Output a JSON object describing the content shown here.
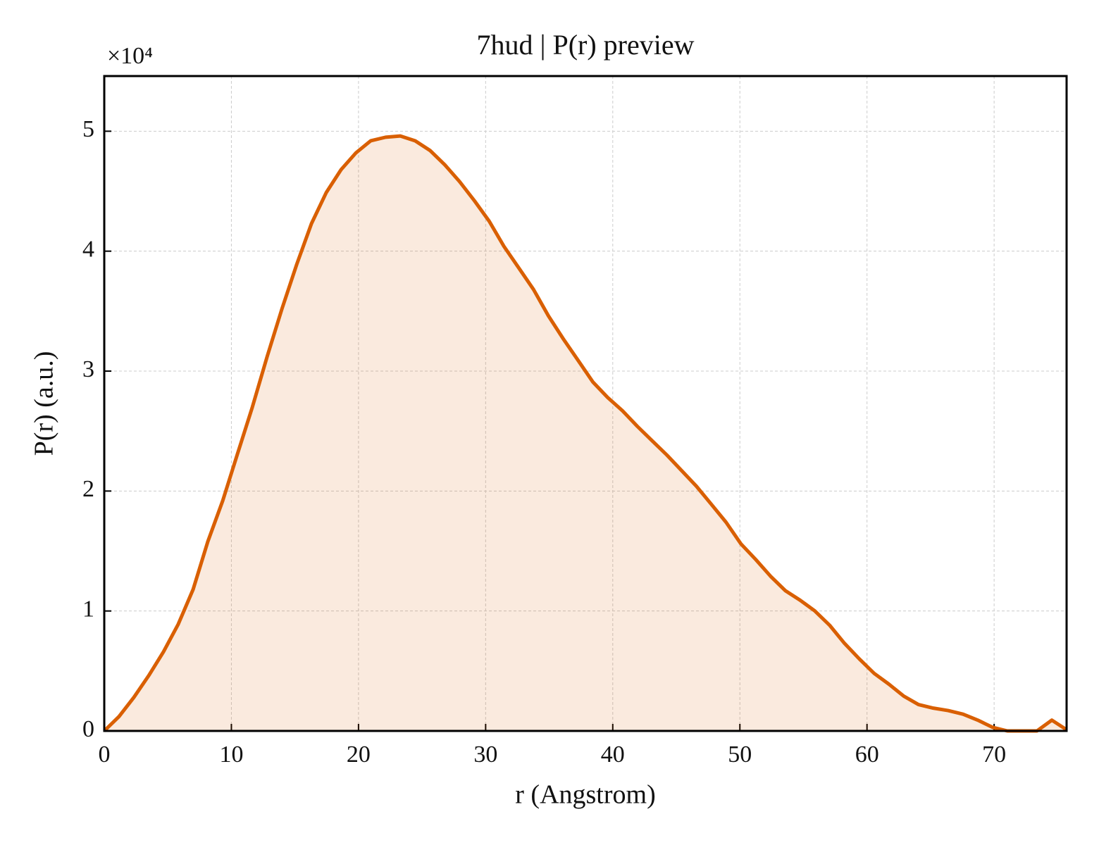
{
  "chart_data": {
    "type": "line",
    "title": "7hud | P(r) preview",
    "xlabel": "r (Angstrom)",
    "ylabel": "P(r) (a.u.)",
    "y_scale_label": "×10⁴",
    "x": [
      0,
      1.16,
      2.33,
      3.49,
      4.66,
      5.82,
      6.99,
      8.15,
      9.32,
      10.48,
      11.65,
      12.81,
      13.98,
      15.14,
      16.3,
      17.47,
      18.63,
      19.8,
      20.96,
      22.13,
      23.29,
      24.46,
      25.62,
      26.79,
      27.95,
      29.12,
      30.28,
      31.44,
      32.61,
      33.77,
      34.94,
      36.1,
      37.27,
      38.43,
      39.6,
      40.76,
      41.93,
      43.09,
      44.26,
      45.42,
      46.58,
      47.75,
      48.91,
      50.08,
      51.24,
      52.41,
      53.57,
      54.74,
      55.9,
      57.07,
      58.23,
      59.4,
      60.56,
      61.72,
      62.89,
      64.05,
      65.22,
      66.38,
      67.55,
      68.71,
      69.88,
      71.04,
      72.21,
      73.37,
      74.54,
      75.7
    ],
    "series": [
      {
        "color": "#d95f02",
        "fill": true,
        "values": [
          0,
          0.12,
          0.28,
          0.46,
          0.66,
          0.89,
          1.18,
          1.58,
          1.92,
          2.31,
          2.7,
          3.12,
          3.52,
          3.89,
          4.23,
          4.49,
          4.68,
          4.82,
          4.92,
          4.95,
          4.96,
          4.92,
          4.84,
          4.72,
          4.58,
          4.42,
          4.25,
          4.04,
          3.86,
          3.68,
          3.46,
          3.27,
          3.09,
          2.91,
          2.78,
          2.67,
          2.54,
          2.42,
          2.3,
          2.17,
          2.04,
          1.89,
          1.74,
          1.56,
          1.43,
          1.29,
          1.17,
          1.09,
          1.0,
          0.88,
          0.73,
          0.6,
          0.48,
          0.39,
          0.29,
          0.22,
          0.19,
          0.17,
          0.14,
          0.09,
          0.03,
          0,
          0,
          0,
          0.09,
          0.01
        ]
      }
    ],
    "xlim": [
      0,
      75.7
    ],
    "ylim": [
      0,
      5.46
    ],
    "xticks": [
      0,
      10,
      20,
      30,
      40,
      50,
      60,
      70
    ],
    "yticks": [
      0,
      1,
      2,
      3,
      4,
      5
    ],
    "grid": true
  }
}
